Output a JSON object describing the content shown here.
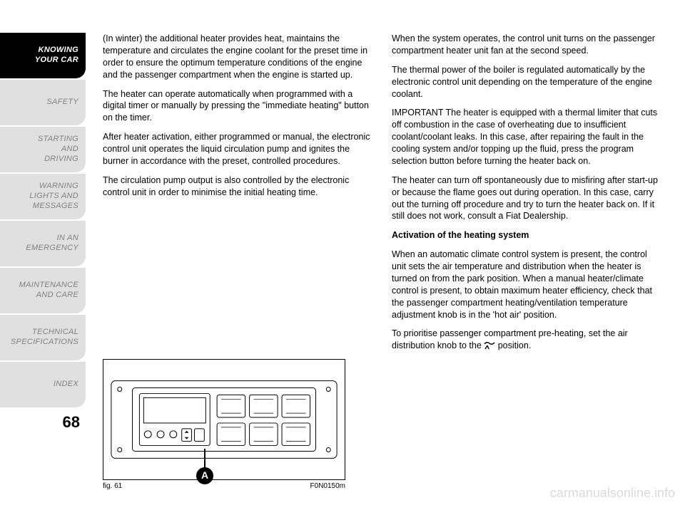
{
  "sidebar": {
    "tabs": [
      {
        "lines": [
          "KNOWING",
          "YOUR CAR"
        ],
        "active": true
      },
      {
        "lines": [
          "SAFETY"
        ],
        "active": false
      },
      {
        "lines": [
          "STARTING",
          "AND",
          "DRIVING"
        ],
        "active": false
      },
      {
        "lines": [
          "WARNING",
          "LIGHTS AND",
          "MESSAGES"
        ],
        "active": false
      },
      {
        "lines": [
          "IN AN",
          "EMERGENCY"
        ],
        "active": false
      },
      {
        "lines": [
          "MAINTENANCE",
          "AND CARE"
        ],
        "active": false
      },
      {
        "lines": [
          "TECHNICAL",
          "SPECIFICATIONS"
        ],
        "active": false
      },
      {
        "lines": [
          "INDEX"
        ],
        "active": false
      }
    ],
    "page_number": "68"
  },
  "left_column": {
    "p1": "(In winter) the additional heater provides heat, maintains the temperature and circulates the engine coolant for the preset time in order to ensure the optimum temperature conditions of the engine and the passenger compartment when the engine is started up.",
    "p2": "The heater can operate automatically when programmed with a digital timer or manually by pressing the \"immediate heating\" button on the timer.",
    "p3": "After heater activation, either programmed or manual, the electronic control unit operates the liquid circulation pump and ignites the burner in accordance with the preset, controlled procedures.",
    "p4": "The circulation pump output is also controlled by the electronic control unit in order to minimise the initial heating time."
  },
  "right_column": {
    "p1": "When the system operates, the control unit turns on the passenger compartment heater unit fan at the second speed.",
    "p2": "The thermal power of the boiler is regulated automatically by the electronic control unit depending on the temperature of the engine coolant.",
    "p3": "IMPORTANT The heater is equipped with a thermal limiter that cuts off combustion in the case of overheating due to insufficient coolant/coolant leaks. In this case, after repairing the fault in the cooling system and/or topping up the fluid, press the program selection button before turning the heater back on.",
    "p4": "The heater can turn off spontaneously due to misfiring after start-up or because the flame goes out during operation. In this case, carry out the turning off procedure and try to turn the heater back on. If it still does not work, consult a Fiat Dealership.",
    "heading": "Activation of the heating system",
    "p5": "When an automatic climate control system is present, the control unit sets the air temperature and distribution when the heater is turned on from the park position. When a manual heater/climate control is present, to obtain maximum heater efficiency, check that the passenger compartment heating/ventilation temperature adjustment knob is in the 'hot air' position.",
    "p6_a": "To prioritise passenger compartment pre-heating, set the air distribution knob to the ",
    "p6_b": " position."
  },
  "figure": {
    "caption_left": "fig. 61",
    "caption_right": "F0N0150m",
    "callout_label": "A",
    "colors": {
      "stroke": "#000000",
      "fill": "#ffffff"
    }
  },
  "watermark": "carmanualsonline.info"
}
